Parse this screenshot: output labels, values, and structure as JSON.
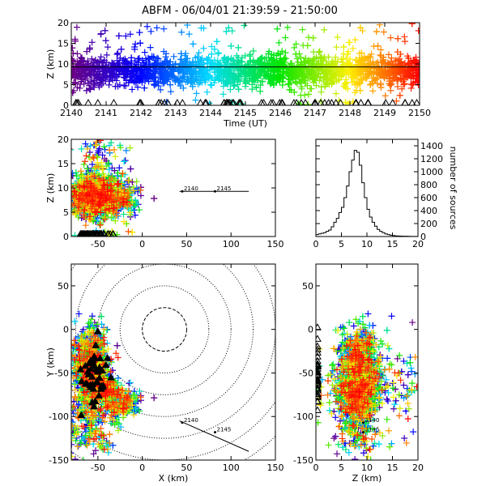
{
  "title": "ABFM - 06/04/01 21:39:59 - 21:50:00",
  "chart_data": [
    {
      "id": "time_height",
      "type": "scatter",
      "xlabel": "Time (UT)",
      "ylabel": "Z (km)",
      "xlim": [
        2140,
        2150
      ],
      "ylim": [
        0,
        20
      ],
      "xticks": [
        2140,
        2141,
        2142,
        2143,
        2144,
        2145,
        2146,
        2147,
        2148,
        2149,
        2150
      ],
      "yticks": [
        0,
        5,
        10,
        15,
        20
      ],
      "horizontal_line_y": 9.3,
      "point_color_by": "time",
      "description_points": {
        "z_core_range": [
          5,
          12
        ],
        "z_outlier_range": [
          0,
          20
        ],
        "ground_markers_z": 0
      }
    },
    {
      "id": "x_height",
      "type": "scatter",
      "xlabel": "",
      "ylabel": "Z (km)",
      "xlim": [
        -80,
        150
      ],
      "ylim": [
        0,
        20
      ],
      "xticks": [
        -50,
        0,
        50,
        100,
        150
      ],
      "yticks": [
        0,
        5,
        10,
        15,
        20
      ],
      "annotations": [
        {
          "text": "2140",
          "x": 45,
          "y": 9.3
        },
        {
          "text": "2145",
          "x": 82,
          "y": 9.3
        }
      ],
      "line": {
        "x": [
          42,
          120
        ],
        "y": [
          9.3,
          9.3
        ]
      }
    },
    {
      "id": "altitude_histogram",
      "type": "bar",
      "xlabel": "",
      "ylabel": "number of sources",
      "xlim": [
        0,
        20
      ],
      "ylim": [
        0,
        1500
      ],
      "xticks": [
        0,
        5,
        10,
        15,
        20
      ],
      "yticks": [
        0,
        200,
        400,
        600,
        800,
        1000,
        1200,
        1400
      ],
      "bin_edges": [
        0,
        0.5,
        1,
        1.5,
        2,
        2.5,
        3,
        3.5,
        4,
        4.5,
        5,
        5.5,
        6,
        6.5,
        7,
        7.5,
        8,
        8.5,
        9,
        9.5,
        10,
        10.5,
        11,
        11.5,
        12,
        12.5,
        13,
        13.5,
        14,
        14.5,
        15,
        15.5,
        16,
        16.5,
        17,
        17.5,
        18,
        18.5,
        19,
        19.5,
        20
      ],
      "values": [
        30,
        40,
        50,
        60,
        80,
        100,
        150,
        220,
        280,
        370,
        450,
        600,
        780,
        1000,
        1180,
        1330,
        1300,
        1100,
        830,
        600,
        420,
        300,
        220,
        160,
        110,
        80,
        60,
        40,
        30,
        20,
        15,
        10,
        8,
        6,
        5,
        4,
        3,
        2,
        2,
        1
      ]
    },
    {
      "id": "plan_view",
      "type": "scatter",
      "xlabel": "X (km)",
      "ylabel": "Y (km)",
      "xlim": [
        -80,
        150
      ],
      "ylim": [
        -150,
        75
      ],
      "xticks": [
        -50,
        0,
        50,
        100,
        150
      ],
      "yticks": [
        -150,
        -100,
        -50,
        0,
        50
      ],
      "range_rings_km": [
        25,
        50,
        75,
        100,
        125,
        150,
        175
      ],
      "ring_center": [
        25,
        0
      ],
      "annotations": [
        {
          "text": "2140",
          "x": 45,
          "y": -107
        },
        {
          "text": "2145",
          "x": 82,
          "y": -118
        }
      ],
      "line": {
        "x": [
          42,
          120
        ],
        "y": [
          -105,
          -140
        ]
      }
    },
    {
      "id": "z_y",
      "type": "scatter",
      "xlabel": "Z (km)",
      "ylabel": "",
      "xlim": [
        0,
        20
      ],
      "ylim": [
        -150,
        75
      ],
      "xticks": [
        0,
        5,
        10,
        15,
        20
      ],
      "yticks": [
        -150,
        -100,
        -50,
        0,
        50
      ],
      "annotations": [
        {
          "text": "2140",
          "x": 9.3,
          "y": -107
        },
        {
          "text": "2145",
          "x": 9.3,
          "y": -118
        }
      ]
    }
  ]
}
